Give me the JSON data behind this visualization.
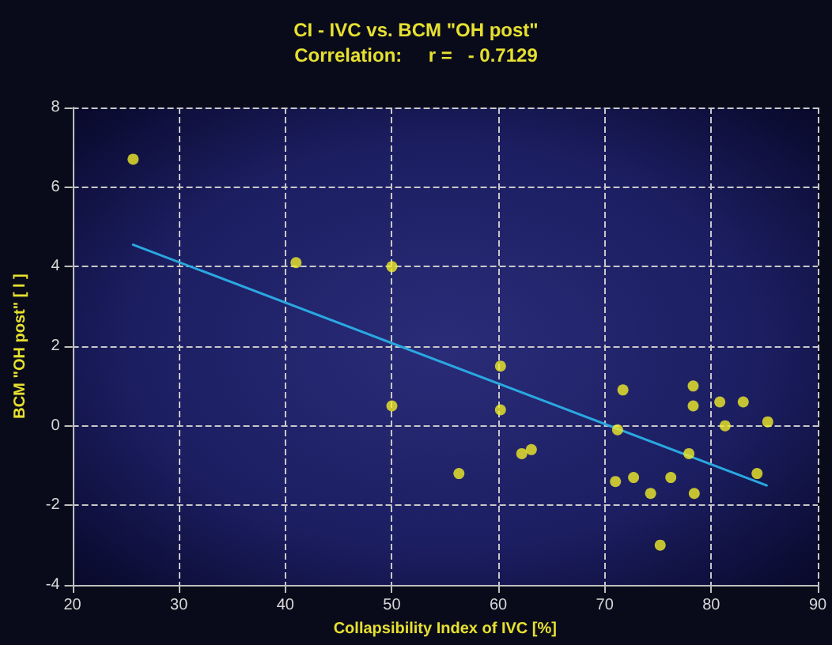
{
  "chart_data": {
    "type": "scatter",
    "title": "CI - IVC vs. BCM \"OH post\"",
    "subtitle": "Correlation:     r =   - 0.7129",
    "xlabel": "Collapsibility Index of IVC [%]",
    "ylabel": "BCM \"OH post\" [ l ]",
    "xlim": [
      20,
      90
    ],
    "xticks": [
      20,
      30,
      40,
      50,
      60,
      70,
      80,
      90
    ],
    "ylim": [
      -4,
      8
    ],
    "yticks": [
      -4,
      -2,
      0,
      2,
      4,
      6,
      8
    ],
    "grid": true,
    "marker": "circle",
    "series": [
      {
        "color": "#f0ec28",
        "x": [
          25.7,
          41,
          50,
          50,
          56.3,
          60.2,
          60.2,
          62.2,
          63.1,
          71.7,
          71.2,
          71.0,
          72.7,
          74.3,
          75.2,
          76.2,
          77.9,
          78.3,
          78.3,
          78.4,
          80.8,
          81.3,
          83.0,
          85.3,
          84.3
        ],
        "values": [
          6.7,
          4.1,
          4.0,
          0.5,
          -1.2,
          1.5,
          0.4,
          -0.7,
          -0.6,
          0.9,
          -0.1,
          -1.4,
          -1.3,
          -1.7,
          -3.0,
          -1.3,
          -0.7,
          1.0,
          0.5,
          -1.7,
          0.6,
          0.0,
          0.6,
          0.1,
          -1.2
        ]
      },
      {
        "type": "line",
        "color": "#2aa8e0",
        "x": [
          25.7,
          85.2
        ],
        "values": [
          4.55,
          -1.5
        ],
        "line_style": "solid",
        "marker": "none"
      }
    ]
  }
}
